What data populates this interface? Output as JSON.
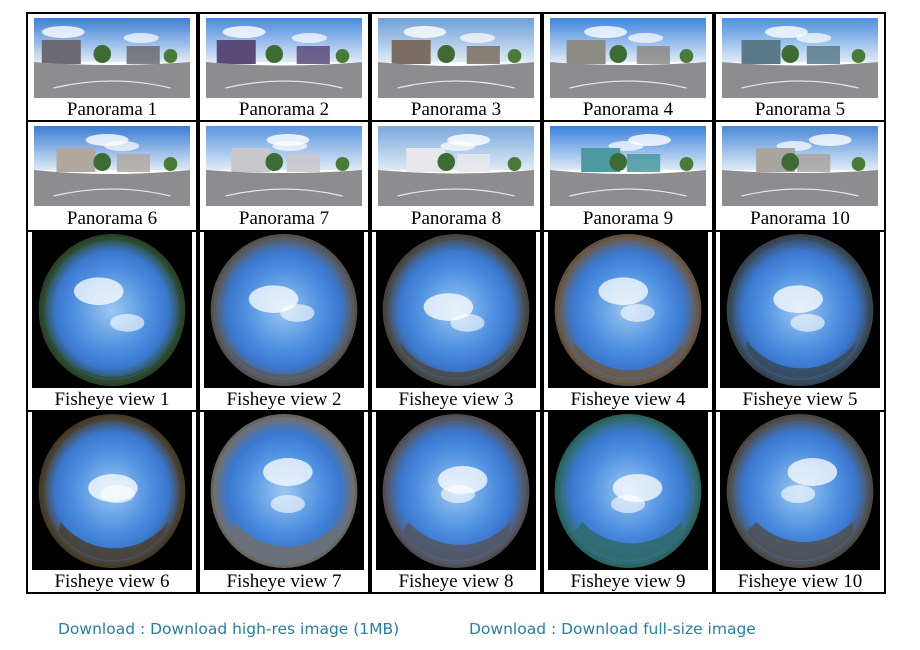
{
  "figure": {
    "panoramas": [
      {
        "label": "Panorama 1",
        "icon": "panorama-image"
      },
      {
        "label": "Panorama 2",
        "icon": "panorama-image"
      },
      {
        "label": "Panorama 3",
        "icon": "panorama-image"
      },
      {
        "label": "Panorama 4",
        "icon": "panorama-image"
      },
      {
        "label": "Panorama 5",
        "icon": "panorama-image"
      },
      {
        "label": "Panorama 6",
        "icon": "panorama-image"
      },
      {
        "label": "Panorama 7",
        "icon": "panorama-image"
      },
      {
        "label": "Panorama 8",
        "icon": "panorama-image"
      },
      {
        "label": "Panorama 9",
        "icon": "panorama-image"
      },
      {
        "label": "Panorama 10",
        "icon": "panorama-image"
      }
    ],
    "fisheyes": [
      {
        "label": "Fisheye view 1",
        "icon": "fisheye-image"
      },
      {
        "label": "Fisheye view 2",
        "icon": "fisheye-image"
      },
      {
        "label": "Fisheye view 3",
        "icon": "fisheye-image"
      },
      {
        "label": "Fisheye view 4",
        "icon": "fisheye-image"
      },
      {
        "label": "Fisheye view 5",
        "icon": "fisheye-image"
      },
      {
        "label": "Fisheye view 6",
        "icon": "fisheye-image"
      },
      {
        "label": "Fisheye view 7",
        "icon": "fisheye-image"
      },
      {
        "label": "Fisheye view 8",
        "icon": "fisheye-image"
      },
      {
        "label": "Fisheye view 9",
        "icon": "fisheye-image"
      },
      {
        "label": "Fisheye view 10",
        "icon": "fisheye-image"
      }
    ]
  },
  "downloads": {
    "high_res": "Download : Download high-res image (1MB)",
    "full_size": "Download : Download full-size image"
  },
  "colors": {
    "link": "#2a7da0",
    "sky": "#5a9be0",
    "ground": "#8a8a8a"
  }
}
